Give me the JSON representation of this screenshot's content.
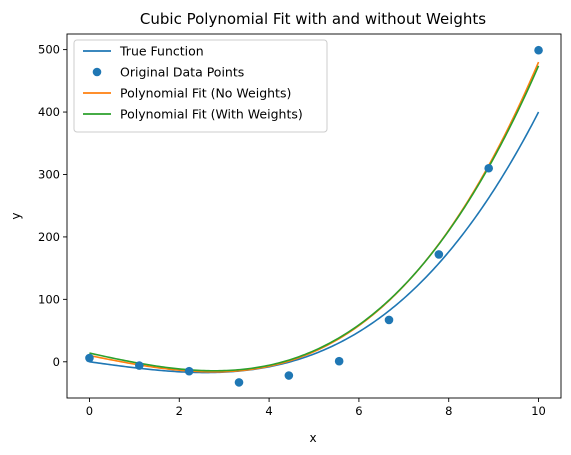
{
  "chart_data": {
    "type": "line",
    "title": "Cubic Polynomial Fit with and without Weights",
    "xlabel": "x",
    "ylabel": "y",
    "xlim": [
      -0.5,
      10.5
    ],
    "ylim": [
      -58,
      525
    ],
    "xticks": [
      0,
      2,
      4,
      6,
      8,
      10
    ],
    "yticks": [
      0,
      100,
      200,
      300,
      400,
      500
    ],
    "grid": false,
    "legend_position": "upper-left",
    "series": [
      {
        "name": "True Function",
        "kind": "line",
        "color": "#1f77b4",
        "curve": "cubic",
        "coefficients": [
          0.5,
          0,
          -10,
          0
        ],
        "x_range": [
          0,
          10
        ]
      },
      {
        "name": "Original Data Points",
        "kind": "scatter",
        "color": "#1f77b4",
        "x": [
          0,
          1.11,
          2.22,
          3.33,
          4.44,
          5.56,
          6.67,
          7.78,
          8.89,
          10
        ],
        "y": [
          6,
          -6,
          -15,
          -33,
          -22,
          1,
          67,
          172,
          310,
          499
        ]
      },
      {
        "name": "Polynomial Fit (No Weights)",
        "kind": "line",
        "color": "#ff7f0e",
        "curve": "cubic",
        "coefficients": [
          0.602,
          0.12,
          -14.4,
          10.0
        ],
        "x_range": [
          0,
          10
        ]
      },
      {
        "name": "Polynomial Fit (With Weights)",
        "kind": "line",
        "color": "#2ca02c",
        "curve": "cubic",
        "coefficients": [
          0.57,
          0.5,
          -16.0,
          14.0
        ],
        "x_range": [
          0,
          10
        ]
      }
    ]
  }
}
